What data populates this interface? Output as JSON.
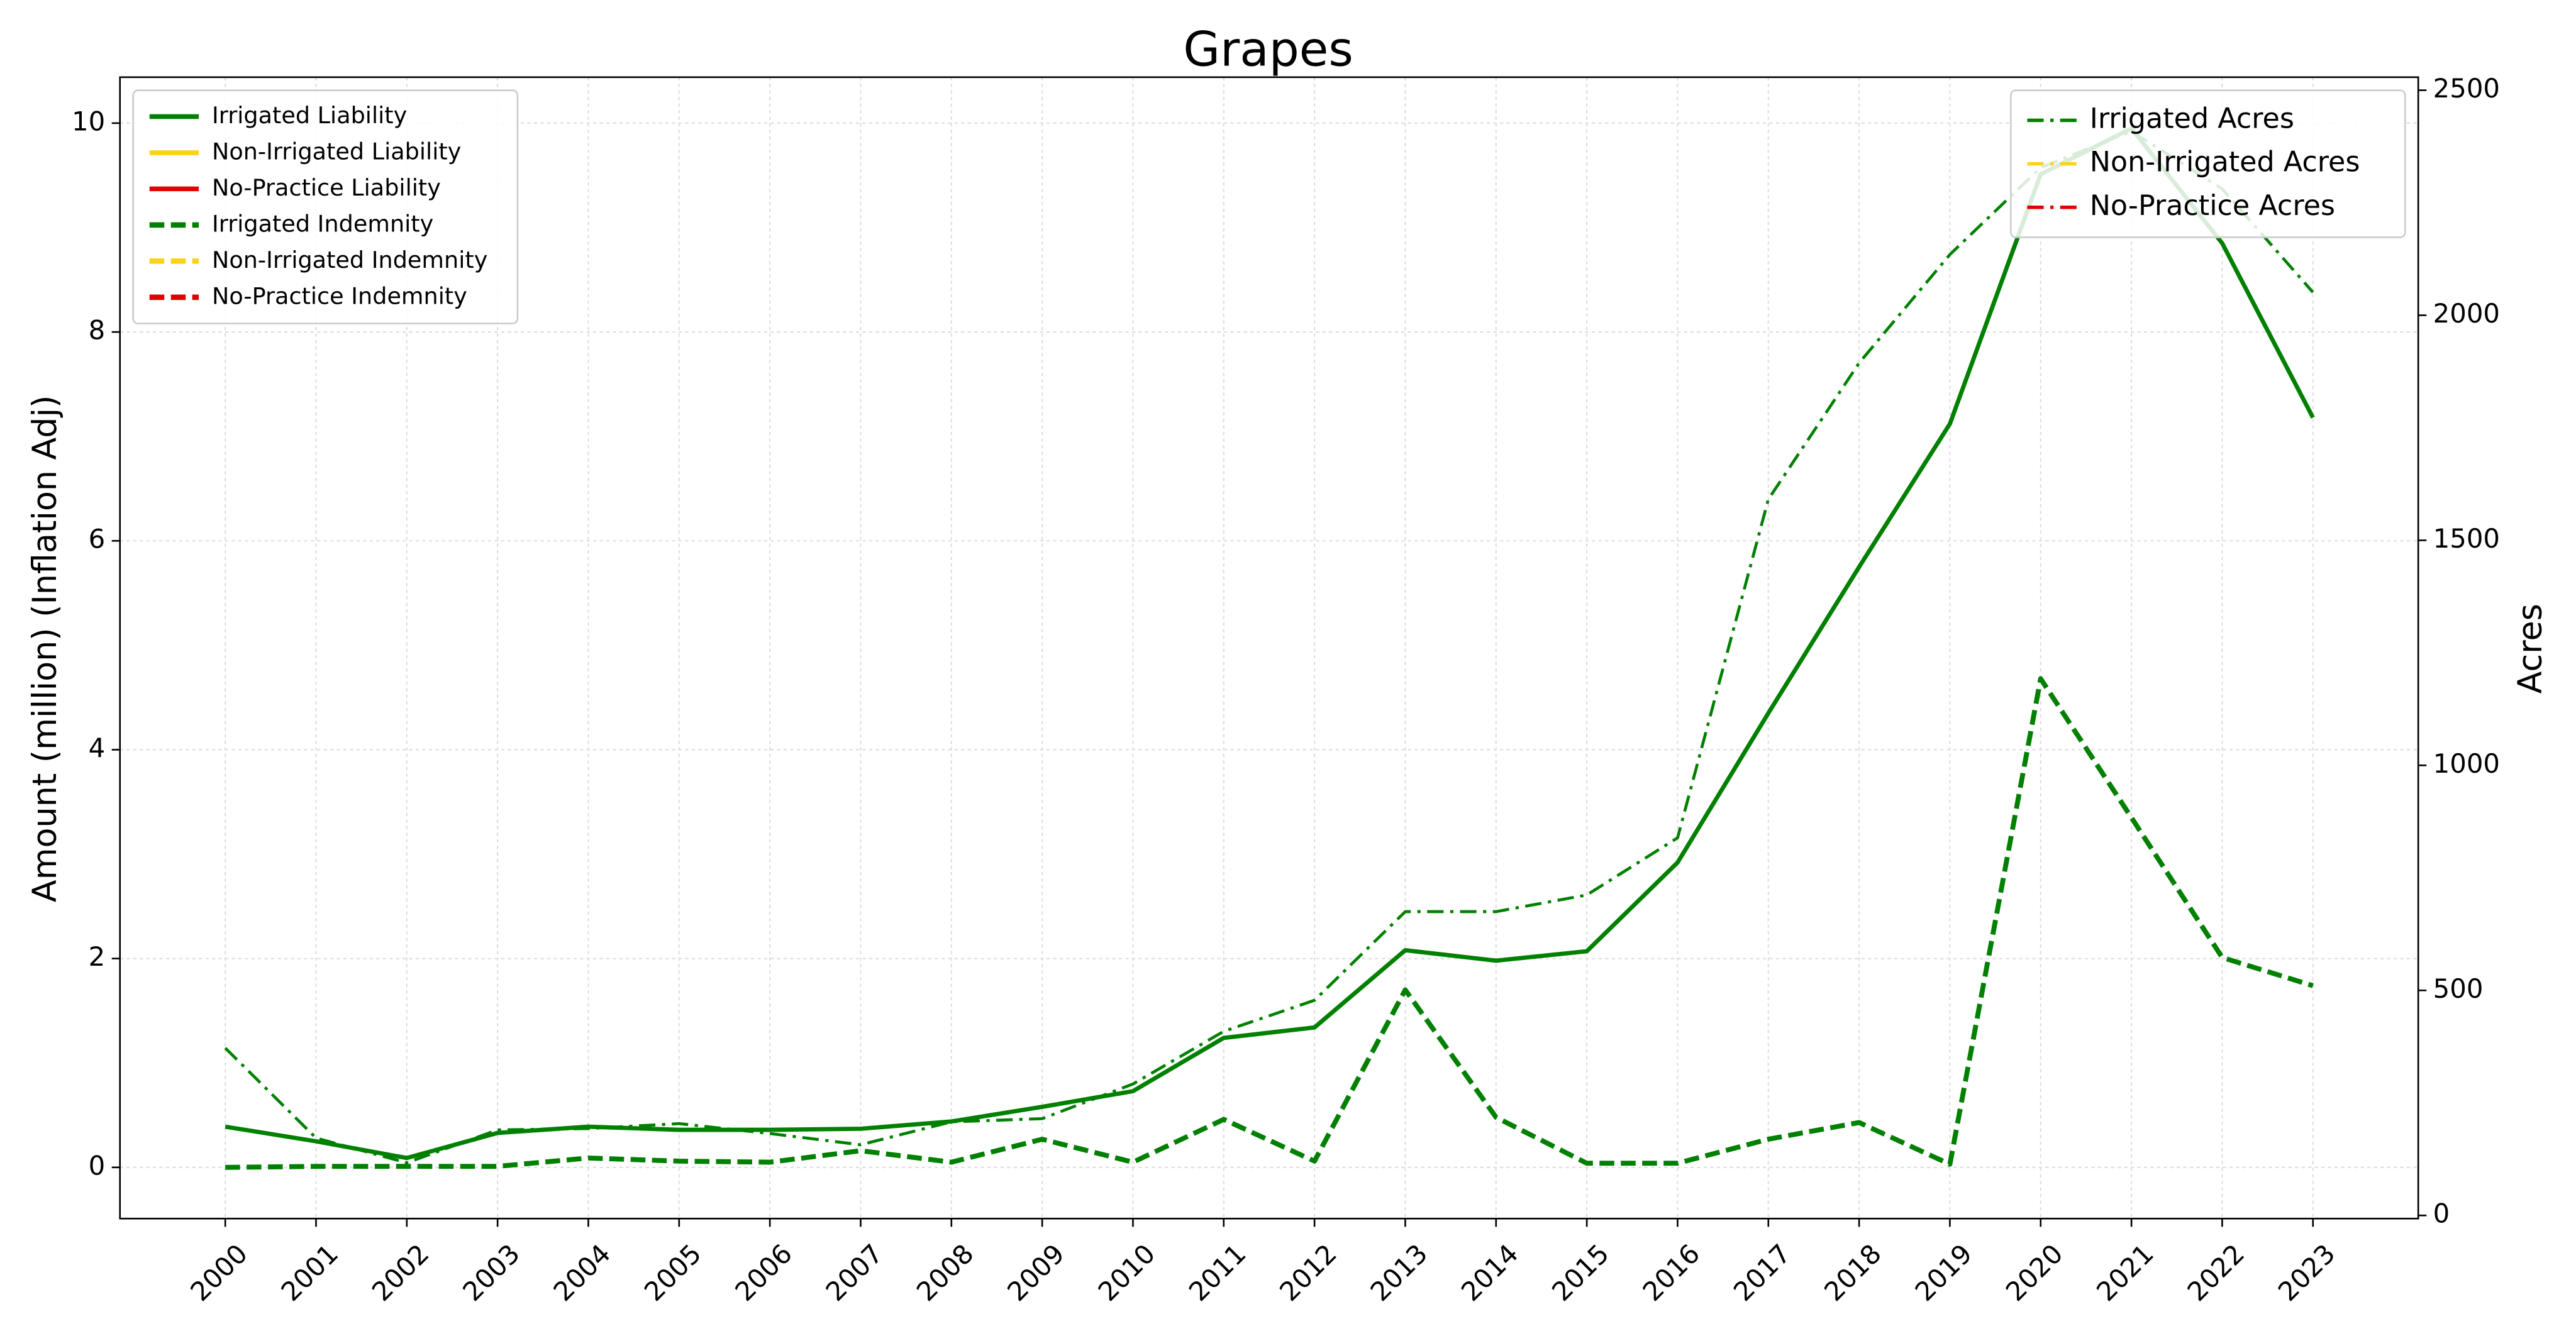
{
  "chart_data": {
    "type": "line",
    "title": "Grapes",
    "y_label": "Amount (million) (Inflation Adj)",
    "y2_label": "Acres",
    "x": [
      2000,
      2001,
      2002,
      2003,
      2004,
      2005,
      2006,
      2007,
      2008,
      2009,
      2010,
      2011,
      2012,
      2013,
      2014,
      2015,
      2016,
      2017,
      2018,
      2019,
      2020,
      2021,
      2022,
      2023
    ],
    "xlim": [
      1998.84,
      2024.16
    ],
    "xticks": [
      2000,
      2001,
      2002,
      2003,
      2004,
      2005,
      2006,
      2007,
      2008,
      2009,
      2010,
      2011,
      2012,
      2013,
      2014,
      2015,
      2016,
      2017,
      2018,
      2019,
      2020,
      2021,
      2022,
      2023
    ],
    "ylim": [
      -0.49,
      10.44
    ],
    "yticks": [
      0,
      2,
      4,
      6,
      8,
      10
    ],
    "y2lim": [
      -7,
      2529
    ],
    "y2ticks": [
      0,
      500,
      1000,
      1500,
      2000,
      2500
    ],
    "grid": true,
    "legend": "upper left",
    "legend2": "upper right",
    "series": [
      {
        "name": "Irrigated Liability",
        "color": "#008000",
        "style": "solid",
        "values": [
          0.39,
          0.25,
          0.09,
          0.33,
          0.39,
          0.36,
          0.36,
          0.37,
          0.44,
          0.58,
          0.73,
          1.24,
          1.34,
          2.08,
          1.98,
          2.07,
          2.92,
          4.35,
          5.75,
          7.12,
          9.51,
          9.95,
          8.85,
          7.18
        ]
      },
      {
        "name": "Non-Irrigated Liability",
        "color": "#ffd11a",
        "style": "solid",
        "values": [
          null,
          null,
          null,
          null,
          null,
          null,
          null,
          null,
          null,
          null,
          null,
          null,
          null,
          null,
          null,
          null,
          null,
          null,
          null,
          null,
          null,
          null,
          null,
          null
        ]
      },
      {
        "name": "No-Practice Liability",
        "color": "#e00000",
        "style": "solid",
        "values": [
          null,
          null,
          null,
          null,
          null,
          null,
          null,
          null,
          null,
          null,
          null,
          null,
          null,
          null,
          null,
          null,
          null,
          null,
          null,
          null,
          null,
          null,
          null,
          null
        ]
      },
      {
        "name": "Irrigated Indemnity",
        "color": "#008000",
        "style": "dashed",
        "values": [
          0.0,
          0.01,
          0.01,
          0.01,
          0.09,
          0.06,
          0.05,
          0.16,
          0.05,
          0.27,
          0.05,
          0.46,
          0.06,
          1.7,
          0.48,
          0.04,
          0.04,
          0.27,
          0.43,
          0.03,
          4.68,
          3.35,
          2.01,
          1.74
        ]
      },
      {
        "name": "Non-Irrigated Indemnity",
        "color": "#ffd11a",
        "style": "dashed",
        "values": [
          null,
          null,
          null,
          null,
          null,
          null,
          null,
          null,
          null,
          null,
          null,
          null,
          null,
          null,
          null,
          null,
          null,
          null,
          null,
          null,
          null,
          null,
          null,
          null
        ]
      },
      {
        "name": "No-Practice Indemnity",
        "color": "#e00000",
        "style": "dashed",
        "values": [
          null,
          null,
          null,
          null,
          null,
          null,
          null,
          null,
          null,
          null,
          null,
          null,
          null,
          null,
          null,
          null,
          null,
          null,
          null,
          null,
          null,
          null,
          null,
          null
        ]
      },
      {
        "name": "Irrigated Acres",
        "color": "#008000",
        "style": "dashdot",
        "axis": "y2",
        "values": [
          372,
          172,
          117,
          190,
          193,
          204,
          182,
          157,
          208,
          215,
          292,
          409,
          478,
          675,
          675,
          712,
          839,
          1591,
          1894,
          2135,
          2328,
          2409,
          2281,
          2051
        ]
      },
      {
        "name": "Non-Irrigated Acres",
        "color": "#ffd11a",
        "style": "dashdot",
        "axis": "y2",
        "values": [
          null,
          null,
          null,
          null,
          null,
          null,
          null,
          null,
          null,
          null,
          null,
          null,
          null,
          null,
          null,
          null,
          null,
          null,
          null,
          null,
          null,
          null,
          null,
          null
        ]
      },
      {
        "name": "No-Practice Acres",
        "color": "#e00000",
        "style": "dashdot",
        "axis": "y2",
        "values": [
          null,
          null,
          null,
          null,
          null,
          null,
          null,
          null,
          null,
          null,
          null,
          null,
          null,
          null,
          null,
          null,
          null,
          null,
          null,
          null,
          null,
          null,
          null,
          null
        ]
      }
    ]
  }
}
